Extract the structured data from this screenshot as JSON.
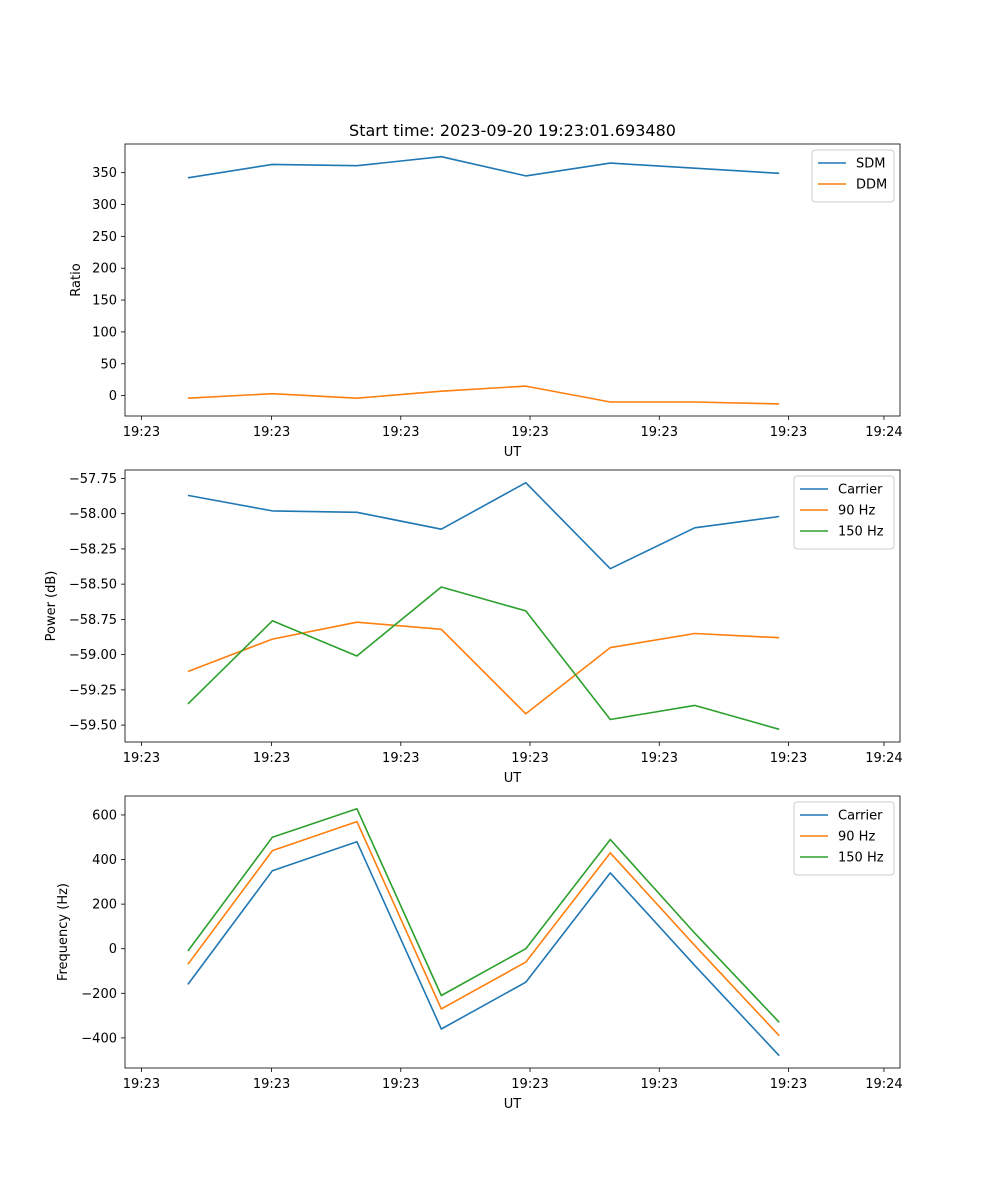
{
  "figure": {
    "title": "Start time: 2023-09-20 19:23:01.693480"
  },
  "chart_data": [
    {
      "type": "line",
      "title": "Start time: 2023-09-20 19:23:01.693480",
      "xlabel": "UT",
      "ylabel": "Ratio",
      "x": [
        1,
        2,
        3,
        4,
        5,
        6,
        7,
        8
      ],
      "xlim": [
        0.255,
        9.43
      ],
      "x_ticks": [
        0.45,
        1.99,
        3.52,
        5.05,
        6.58,
        8.11,
        9.24
      ],
      "x_tick_labels": [
        "19:23",
        "19:23",
        "19:23",
        "19:23",
        "19:23",
        "19:23",
        "19:24"
      ],
      "ylim": [
        -32,
        395
      ],
      "y_ticks": [
        0,
        50,
        100,
        150,
        200,
        250,
        300,
        350
      ],
      "y_tick_labels": [
        "0",
        "50",
        "100",
        "150",
        "200",
        "250",
        "300",
        "350"
      ],
      "legend_position": "top-right",
      "series": [
        {
          "name": "SDM",
          "color": "#1f77b4",
          "values": [
            342,
            363,
            361,
            375,
            345,
            365,
            357,
            349
          ]
        },
        {
          "name": "DDM",
          "color": "#ff7f0e",
          "values": [
            -4,
            3,
            -4,
            7,
            15,
            -10,
            -10,
            -13
          ]
        }
      ]
    },
    {
      "type": "line",
      "title": "",
      "xlabel": "UT",
      "ylabel": "Power (dB)",
      "x": [
        1,
        2,
        3,
        4,
        5,
        6,
        7,
        8
      ],
      "xlim": [
        0.255,
        9.43
      ],
      "x_ticks": [
        0.45,
        1.99,
        3.52,
        5.05,
        6.58,
        8.11,
        9.24
      ],
      "x_tick_labels": [
        "19:23",
        "19:23",
        "19:23",
        "19:23",
        "19:23",
        "19:23",
        "19:24"
      ],
      "ylim": [
        -59.62,
        -57.69
      ],
      "y_ticks": [
        -59.5,
        -59.25,
        -59.0,
        -58.75,
        -58.5,
        -58.25,
        -58.0,
        -57.75
      ],
      "y_tick_labels": [
        "−59.50",
        "−59.25",
        "−59.00",
        "−58.75",
        "−58.50",
        "−58.25",
        "−58.00",
        "−57.75"
      ],
      "legend_position": "top-right",
      "series": [
        {
          "name": "Carrier",
          "color": "#1f77b4",
          "values": [
            -57.87,
            -57.98,
            -57.99,
            -58.11,
            -57.78,
            -58.39,
            -58.1,
            -58.02
          ]
        },
        {
          "name": "90 Hz",
          "color": "#ff7f0e",
          "values": [
            -59.12,
            -58.89,
            -58.77,
            -58.82,
            -59.42,
            -58.95,
            -58.85,
            -58.88
          ]
        },
        {
          "name": "150 Hz",
          "color": "#2ca02c",
          "values": [
            -59.35,
            -58.76,
            -59.01,
            -58.52,
            -58.69,
            -59.46,
            -59.36,
            -59.53
          ]
        }
      ]
    },
    {
      "type": "line",
      "title": "",
      "xlabel": "UT",
      "ylabel": "Frequency (Hz)",
      "x": [
        1,
        2,
        3,
        4,
        5,
        6,
        7,
        8
      ],
      "xlim": [
        0.255,
        9.43
      ],
      "x_ticks": [
        0.45,
        1.99,
        3.52,
        5.05,
        6.58,
        8.11,
        9.24
      ],
      "x_tick_labels": [
        "19:23",
        "19:23",
        "19:23",
        "19:23",
        "19:23",
        "19:23",
        "19:24"
      ],
      "ylim": [
        -535,
        685
      ],
      "y_ticks": [
        -400,
        -200,
        0,
        200,
        400,
        600
      ],
      "y_tick_labels": [
        "−400",
        "−200",
        "0",
        "200",
        "400",
        "600"
      ],
      "legend_position": "top-right",
      "series": [
        {
          "name": "Carrier",
          "color": "#1f77b4",
          "values": [
            -160,
            350,
            480,
            -360,
            -150,
            340,
            -75,
            -480
          ]
        },
        {
          "name": "90 Hz",
          "color": "#ff7f0e",
          "values": [
            -70,
            440,
            570,
            -270,
            -60,
            430,
            15,
            -390
          ]
        },
        {
          "name": "150 Hz",
          "color": "#2ca02c",
          "values": [
            -10,
            500,
            628,
            -210,
            0,
            490,
            70,
            -330
          ]
        }
      ]
    }
  ]
}
